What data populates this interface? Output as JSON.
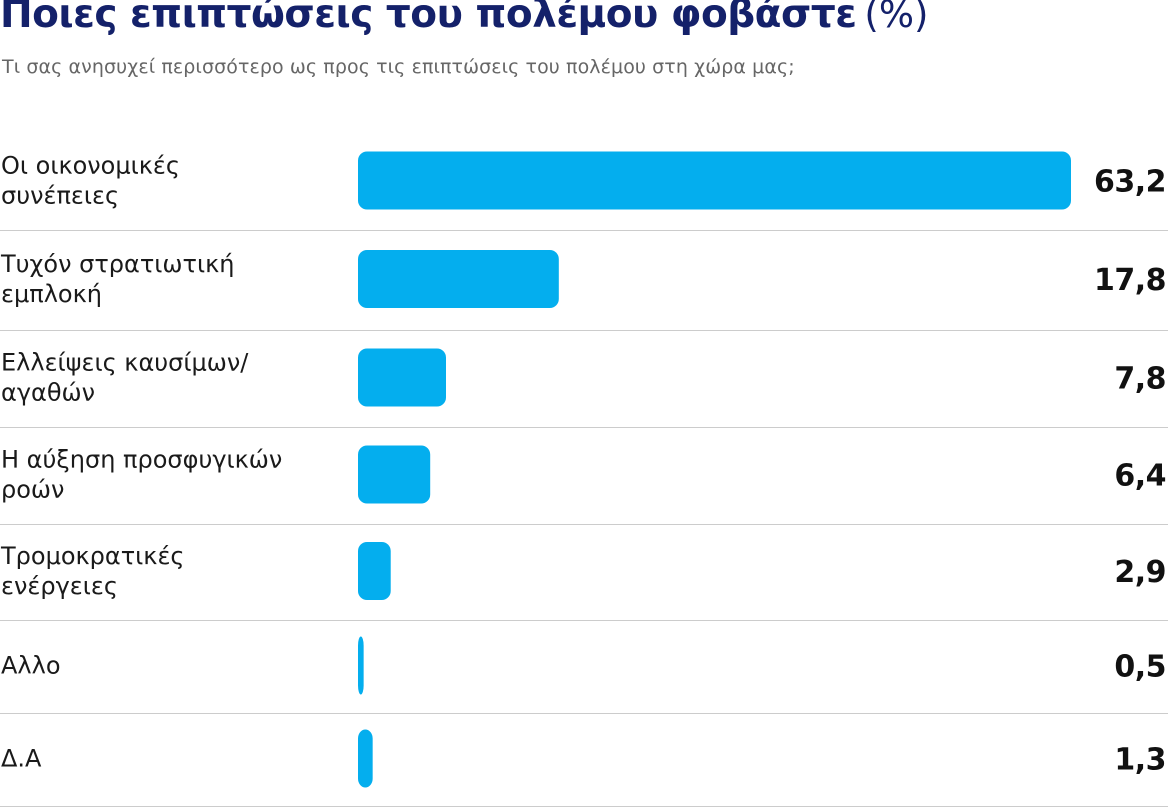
{
  "header": {
    "title": "Ποιες επιπτώσεις του πολέμου φοβάστε",
    "title_unit": "(%)",
    "subtitle": "Τι σας ανησυχεί περισσότερο ως προς τις επιπτώσεις του πολέμου στη χώρα μας;"
  },
  "colors": {
    "bar": "#04aeee",
    "title": "#14216a",
    "divider": "#cccccc"
  },
  "chart_data": {
    "type": "bar",
    "orientation": "horizontal",
    "categories": [
      [
        "Οι οικονομικές",
        "συνέπειες"
      ],
      [
        "Τυχόν στρατιωτική",
        "εμπλοκή"
      ],
      [
        "Ελλείψεις καυσίμων/",
        "αγαθών"
      ],
      [
        "Η αύξηση προσφυγικών",
        "ροών"
      ],
      [
        "Τρομοκρατικές",
        "ενέργειες"
      ],
      [
        "Αλλο"
      ],
      [
        "Δ.Α"
      ]
    ],
    "values": [
      63.2,
      17.8,
      7.8,
      6.4,
      2.9,
      0.5,
      1.3
    ],
    "value_labels": [
      "63,2",
      "17,8",
      "7,8",
      "6,4",
      "2,9",
      "0,5",
      "1,3"
    ],
    "xlim": [
      0,
      63.2
    ],
    "grid": false,
    "legend": "none"
  }
}
